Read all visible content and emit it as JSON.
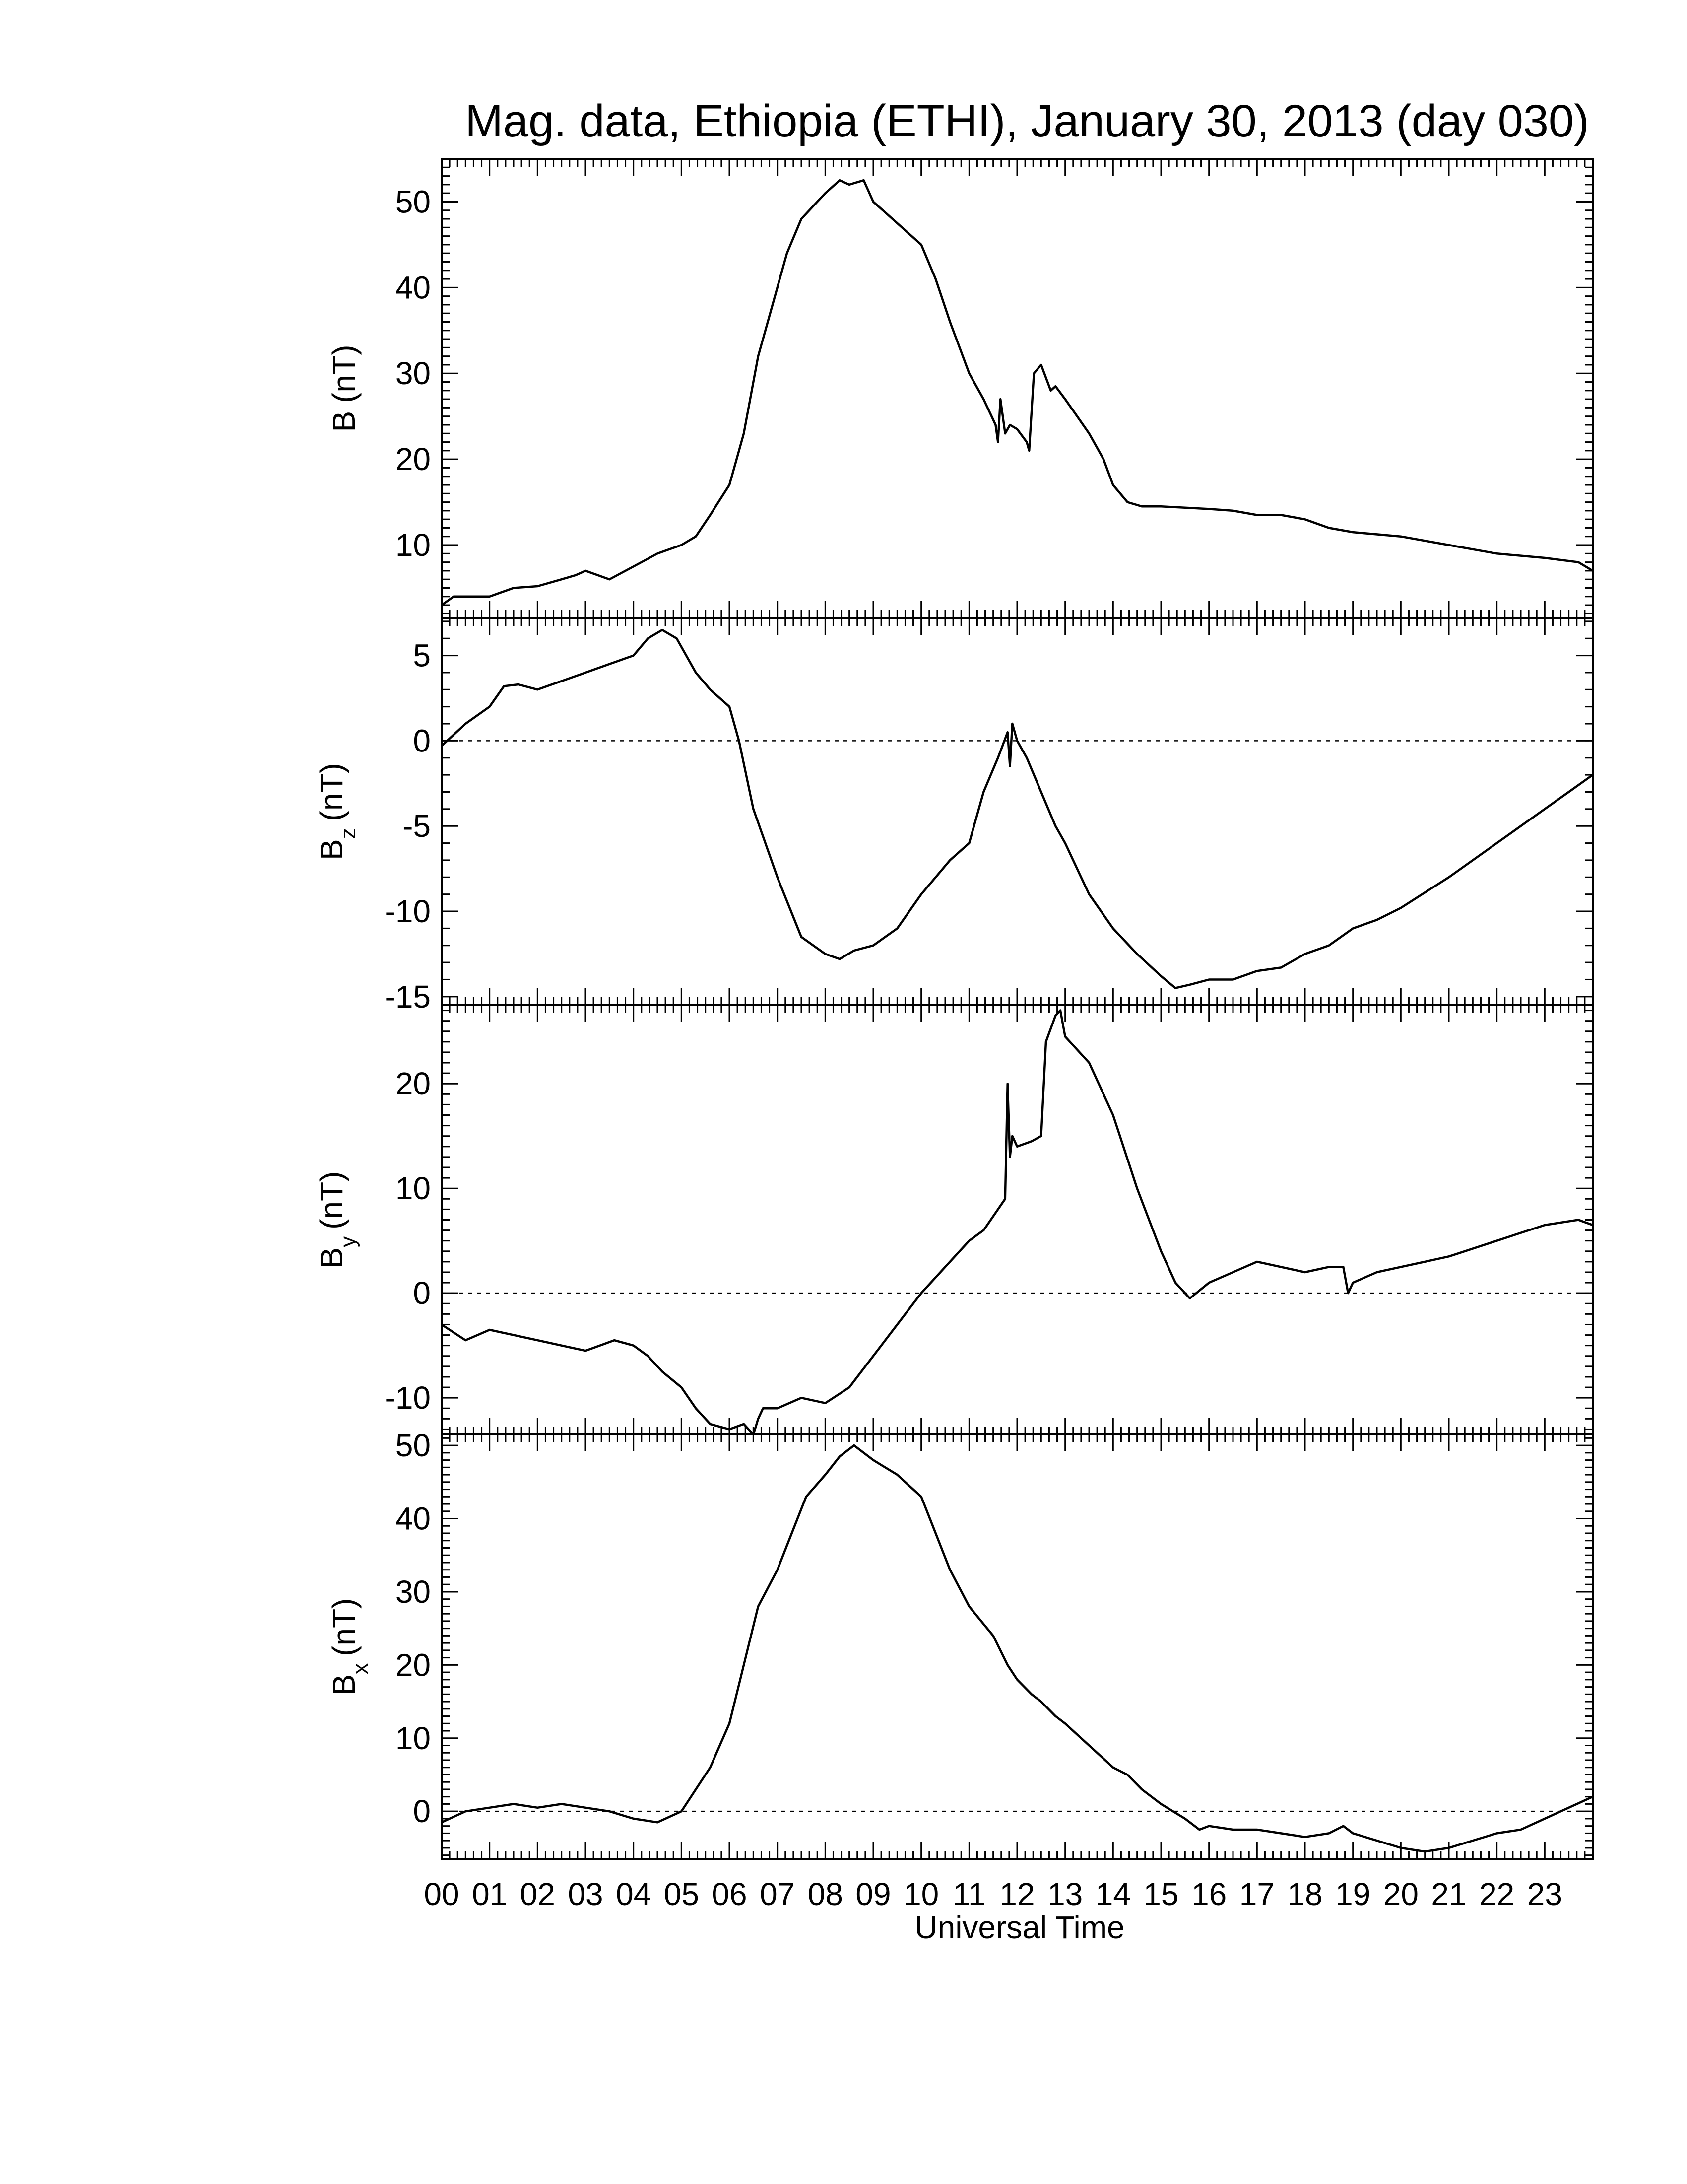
{
  "chart_data": {
    "type": "line",
    "title": "Mag. data, Ethiopia (ETHI), January 30, 2013 (day 030)",
    "xlabel": "Universal Time",
    "xlim": [
      0,
      24
    ],
    "x_tick_labels": [
      "00",
      "01",
      "02",
      "03",
      "04",
      "05",
      "06",
      "07",
      "08",
      "09",
      "10",
      "11",
      "12",
      "13",
      "14",
      "15",
      "16",
      "17",
      "18",
      "19",
      "20",
      "21",
      "22",
      "23"
    ],
    "panels": [
      {
        "key": "B",
        "ylabel_main": "B",
        "ylabel_sub": "",
        "ylabel_unit": "(nT)",
        "ylim": [
          1.5,
          55
        ],
        "yticks": [
          10,
          20,
          30,
          40,
          50
        ],
        "zero_line": false,
        "x": [
          0,
          0.25,
          0.5,
          1.0,
          1.5,
          2.0,
          2.5,
          2.8,
          3.0,
          3.5,
          4.0,
          4.5,
          5.0,
          5.3,
          5.6,
          6.0,
          6.3,
          6.6,
          6.9,
          7.2,
          7.5,
          8.0,
          8.3,
          8.5,
          8.8,
          9.0,
          9.5,
          10.0,
          10.3,
          10.6,
          11.0,
          11.3,
          11.55,
          11.6,
          11.65,
          11.75,
          11.85,
          12.0,
          12.2,
          12.25,
          12.35,
          12.5,
          12.7,
          12.8,
          13.0,
          13.5,
          13.8,
          14.0,
          14.3,
          14.6,
          15.0,
          16.0,
          16.5,
          17.0,
          17.5,
          18.0,
          18.5,
          19.0,
          20.0,
          21.0,
          21.5,
          22.0,
          23.0,
          23.7,
          24.0
        ],
        "y": [
          3.0,
          4.0,
          4.0,
          4.0,
          5.0,
          5.2,
          6.0,
          6.5,
          7.0,
          6.0,
          7.5,
          9.0,
          10.0,
          11.0,
          13.5,
          17.0,
          23.0,
          32.0,
          38.0,
          44.0,
          48.0,
          51.0,
          52.5,
          52.0,
          52.5,
          50.0,
          47.5,
          45.0,
          41.0,
          36.0,
          30.0,
          27.0,
          24.0,
          22.0,
          27.0,
          23.0,
          24.0,
          23.5,
          22.0,
          21.0,
          30.0,
          31.0,
          28.0,
          28.5,
          27.0,
          23.0,
          20.0,
          17.0,
          15.0,
          14.5,
          14.5,
          14.2,
          14.0,
          13.5,
          13.5,
          13.0,
          12.0,
          11.5,
          11.0,
          10.0,
          9.5,
          9.0,
          8.5,
          8.0,
          7.0
        ]
      },
      {
        "key": "Bz",
        "ylabel_main": "B",
        "ylabel_sub": "z",
        "ylabel_unit": "(nT)",
        "ylim": [
          -15.5,
          7.2
        ],
        "yticks": [
          -15,
          -10,
          -5,
          0,
          5
        ],
        "zero_line": true,
        "x": [
          0,
          0.5,
          1.0,
          1.3,
          1.6,
          2.0,
          2.5,
          3.0,
          3.5,
          4.0,
          4.3,
          4.6,
          4.9,
          5.3,
          5.6,
          6.0,
          6.2,
          6.5,
          7.0,
          7.5,
          8.0,
          8.3,
          8.6,
          9.0,
          9.5,
          10.0,
          10.3,
          10.6,
          11.0,
          11.3,
          11.6,
          11.8,
          11.85,
          11.9,
          12.0,
          12.2,
          12.5,
          12.8,
          13.0,
          13.5,
          14.0,
          14.5,
          15.0,
          15.3,
          15.6,
          16.0,
          16.5,
          17.0,
          17.5,
          18.0,
          18.5,
          19.0,
          19.5,
          20.0,
          21.0,
          22.0,
          23.0,
          23.5,
          24.0
        ],
        "y": [
          -0.3,
          1.0,
          2.0,
          3.2,
          3.3,
          3.0,
          3.5,
          4.0,
          4.5,
          5.0,
          6.0,
          6.5,
          6.0,
          4.0,
          3.0,
          2.0,
          0.0,
          -4.0,
          -8.0,
          -11.5,
          -12.5,
          -12.8,
          -12.3,
          -12.0,
          -11.0,
          -9.0,
          -8.0,
          -7.0,
          -6.0,
          -3.0,
          -1.0,
          0.5,
          -1.5,
          1.0,
          0.0,
          -1.0,
          -3.0,
          -5.0,
          -6.0,
          -9.0,
          -11.0,
          -12.5,
          -13.8,
          -14.5,
          -14.3,
          -14.0,
          -14.0,
          -13.5,
          -13.3,
          -12.5,
          -12.0,
          -11.0,
          -10.5,
          -9.8,
          -8.0,
          -6.0,
          -4.0,
          -3.0,
          -2.0
        ]
      },
      {
        "key": "By",
        "ylabel_main": "B",
        "ylabel_sub": "y",
        "ylabel_unit": "(nT)",
        "ylim": [
          -13.5,
          27.5
        ],
        "yticks": [
          -10,
          0,
          10,
          20
        ],
        "zero_line": true,
        "x": [
          0,
          0.5,
          1.0,
          1.5,
          2.0,
          2.5,
          3.0,
          3.3,
          3.6,
          4.0,
          4.3,
          4.6,
          5.0,
          5.3,
          5.6,
          6.0,
          6.3,
          6.5,
          6.6,
          6.7,
          7.0,
          7.5,
          8.0,
          8.5,
          9.0,
          9.5,
          10.0,
          10.5,
          11.0,
          11.3,
          11.6,
          11.75,
          11.8,
          11.85,
          11.9,
          12.0,
          12.3,
          12.5,
          12.6,
          12.8,
          12.9,
          13.0,
          13.5,
          14.0,
          14.5,
          15.0,
          15.3,
          15.6,
          16.0,
          16.5,
          17.0,
          17.5,
          18.0,
          18.5,
          18.8,
          18.9,
          19.0,
          19.5,
          20.0,
          20.5,
          21.0,
          22.0,
          23.0,
          23.7,
          24.0
        ],
        "y": [
          -3.0,
          -4.5,
          -3.5,
          -4.0,
          -4.5,
          -5.0,
          -5.5,
          -5.0,
          -4.5,
          -5.0,
          -6.0,
          -7.5,
          -9.0,
          -11.0,
          -12.5,
          -13.0,
          -12.5,
          -13.5,
          -12.0,
          -11.0,
          -11.0,
          -10.0,
          -10.5,
          -9.0,
          -6.0,
          -3.0,
          0.0,
          2.5,
          5.0,
          6.0,
          8.0,
          9.0,
          20.0,
          13.0,
          15.0,
          14.0,
          14.5,
          15.0,
          24.0,
          26.5,
          27.0,
          24.5,
          22.0,
          17.0,
          10.0,
          4.0,
          1.0,
          -0.5,
          1.0,
          2.0,
          3.0,
          2.5,
          2.0,
          2.5,
          2.5,
          0.0,
          1.0,
          2.0,
          2.5,
          3.0,
          3.5,
          5.0,
          6.5,
          7.0,
          6.5
        ]
      },
      {
        "key": "Bx",
        "ylabel_main": "B",
        "ylabel_sub": "x",
        "ylabel_unit": "(nT)",
        "ylim": [
          -6.5,
          51.5
        ],
        "yticks": [
          0,
          10,
          20,
          30,
          40,
          50
        ],
        "zero_line": true,
        "x": [
          0,
          0.5,
          1.0,
          1.5,
          2.0,
          2.5,
          3.0,
          3.5,
          4.0,
          4.5,
          5.0,
          5.3,
          5.6,
          6.0,
          6.3,
          6.6,
          7.0,
          7.3,
          7.6,
          8.0,
          8.3,
          8.6,
          9.0,
          9.5,
          10.0,
          10.3,
          10.6,
          11.0,
          11.5,
          11.8,
          12.0,
          12.3,
          12.5,
          12.8,
          13.0,
          13.5,
          14.0,
          14.3,
          14.6,
          15.0,
          15.5,
          15.8,
          16.0,
          16.5,
          17.0,
          17.5,
          18.0,
          18.5,
          18.8,
          19.0,
          19.5,
          20.0,
          20.5,
          21.0,
          21.5,
          22.0,
          22.5,
          23.0,
          23.5,
          24.0
        ],
        "y": [
          -1.5,
          0.0,
          0.5,
          1.0,
          0.5,
          1.0,
          0.5,
          0.0,
          -1.0,
          -1.5,
          0.0,
          3.0,
          6.0,
          12.0,
          20.0,
          28.0,
          33.0,
          38.0,
          43.0,
          46.0,
          48.5,
          50.0,
          48.0,
          46.0,
          43.0,
          38.0,
          33.0,
          28.0,
          24.0,
          20.0,
          18.0,
          16.0,
          15.0,
          13.0,
          12.0,
          9.0,
          6.0,
          5.0,
          3.0,
          1.0,
          -1.0,
          -2.5,
          -2.0,
          -2.5,
          -2.5,
          -3.0,
          -3.5,
          -3.0,
          -2.0,
          -3.0,
          -4.0,
          -5.0,
          -5.5,
          -5.0,
          -4.0,
          -3.0,
          -2.5,
          -1.0,
          0.5,
          2.0
        ]
      }
    ]
  }
}
